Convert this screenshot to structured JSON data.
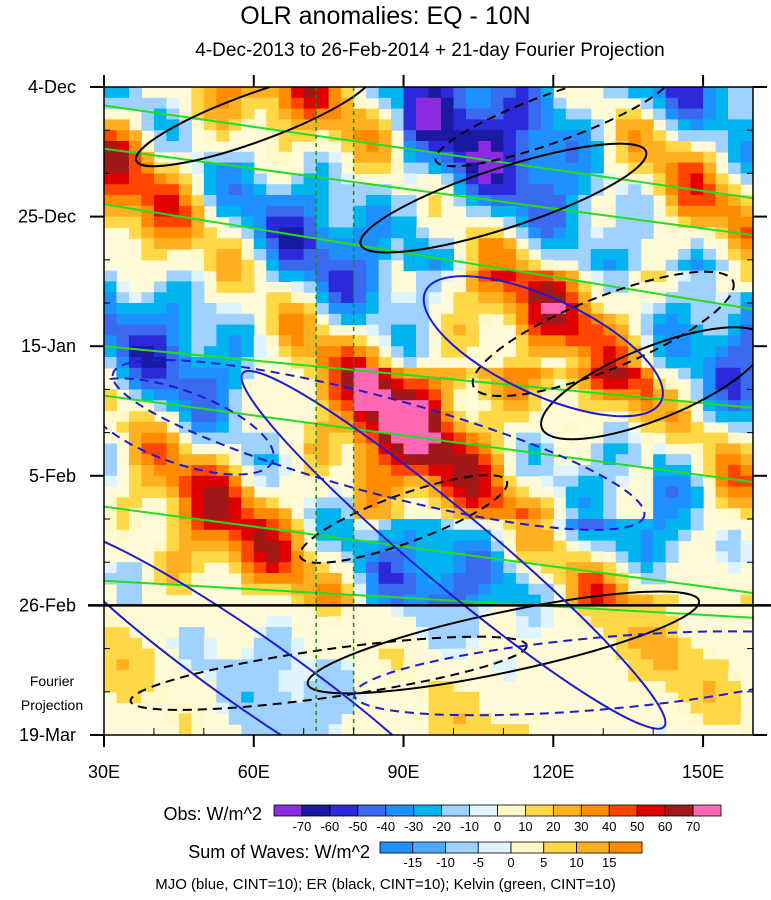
{
  "chart_data": {
    "type": "heatmap",
    "title": "OLR anomalies: EQ - 10N",
    "subtitle": "4-Dec-2013 to 26-Feb-2014 + 21-day Fourier Projection",
    "x_ticks": [
      "30E",
      "60E",
      "90E",
      "120E",
      "150E"
    ],
    "x_tick_values": [
      30,
      60,
      90,
      120,
      150
    ],
    "xlim": [
      30,
      160
    ],
    "y_ticks": [
      "4-Dec",
      "25-Dec",
      "15-Jan",
      "5-Feb",
      "26-Feb",
      "19-Mar"
    ],
    "y_tick_days": [
      0,
      21,
      42,
      63,
      84,
      105
    ],
    "ylim_days": [
      0,
      105
    ],
    "projection_start_day": 84,
    "projection_label": [
      "Fourier",
      "Projection"
    ],
    "reference_lines_lon": [
      72.5,
      80
    ],
    "obs_colorbar": {
      "title": "Obs: W/m^2",
      "levels": [
        "-70",
        "-60",
        "-50",
        "-40",
        "-30",
        "-20",
        "-10",
        "0",
        "10",
        "20",
        "30",
        "40",
        "50",
        "60",
        "70"
      ],
      "colors": [
        "#8a2be2",
        "#1a1aa0",
        "#2a2ad8",
        "#3a6af0",
        "#1e90ff",
        "#00b4f0",
        "#a0d2ff",
        "#e0f4ff",
        "#fff8c8",
        "#ffd848",
        "#ffb020",
        "#ff8c00",
        "#ff4500",
        "#e00000",
        "#a01818",
        "#ff69b4"
      ]
    },
    "waves_colorbar": {
      "title": "Sum of Waves: W/m^2",
      "levels": [
        "-15",
        "-10",
        "-5",
        "0",
        "5",
        "10",
        "15"
      ],
      "colors": [
        "#1e90ff",
        "#4aaaff",
        "#a0d2ff",
        "#e0f4ff",
        "#fff8c8",
        "#ffd848",
        "#ffb020",
        "#ff8c00"
      ]
    },
    "contour_series": [
      {
        "name": "MJO",
        "color": "#1c1cd0"
      },
      {
        "name": "ER",
        "color": "#000000"
      },
      {
        "name": "Kelvin",
        "color": "#22dd22"
      }
    ]
  },
  "footnote": "MJO (blue, CINT=10); ER (black, CINT=10); Kelvin (green, CINT=10)"
}
